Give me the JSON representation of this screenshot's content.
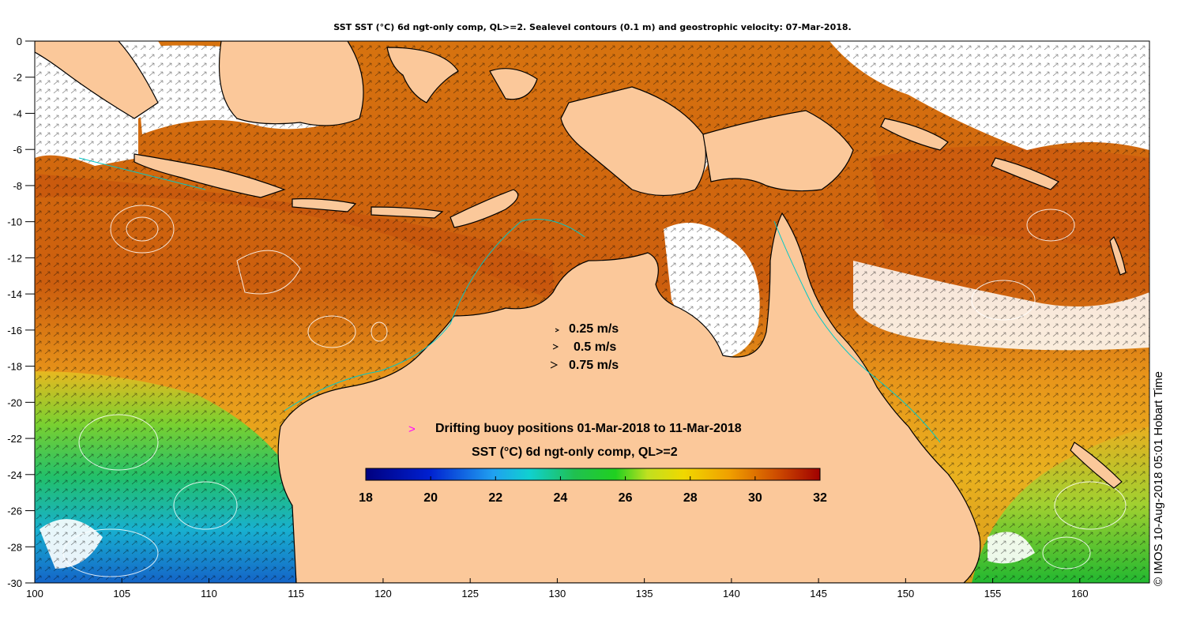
{
  "title": "SST SST (°C) 6d ngt-only comp, QL>=2. Sealevel contours (0.1 m) and geostrophic velocity: 07-Mar-2018.",
  "x_axis": {
    "min": 100,
    "max": 164,
    "ticks": [
      "100",
      "105",
      "110",
      "115",
      "120",
      "125",
      "130",
      "135",
      "140",
      "145",
      "150",
      "155",
      "160"
    ]
  },
  "y_axis": {
    "min": -30,
    "max": 0,
    "ticks": [
      "0",
      "-2",
      "-4",
      "-6",
      "-8",
      "-10",
      "-12",
      "-14",
      "-16",
      "-18",
      "-20",
      "-22",
      "-24",
      "-26",
      "-28",
      "-30"
    ]
  },
  "velocity_legend": [
    {
      "label": "0.25 m/s",
      "speed": 0.25
    },
    {
      "label": "0.5 m/s",
      "speed": 0.5
    },
    {
      "label": "0.75 m/s",
      "speed": 0.75
    }
  ],
  "buoy_legend": {
    "symbol": ">",
    "label": "Drifting buoy positions 01-Mar-2018 to 11-Mar-2018",
    "color": "#ff00ff"
  },
  "colorbar": {
    "title": "SST (°C) 6d ngt-only comp, QL>=2",
    "min": 18,
    "max": 32,
    "ticks": [
      "18",
      "20",
      "22",
      "24",
      "26",
      "28",
      "30",
      "32"
    ]
  },
  "credit": "© IMOS 10-Aug-2018 05:01 Hobart Time",
  "colors": {
    "land": "#fbc89a",
    "no_data": "#ffffff",
    "sst_warm": "#d7730f",
    "sst_hot": "#b8400d",
    "sst_mid": "#f0a51a",
    "sst_cool": "#22c244",
    "sst_cold": "#10a8cc",
    "sst_coldest": "#1060c8",
    "coastline": "#000000",
    "isobath": "#00c8c8",
    "contour": "#ffffff"
  }
}
